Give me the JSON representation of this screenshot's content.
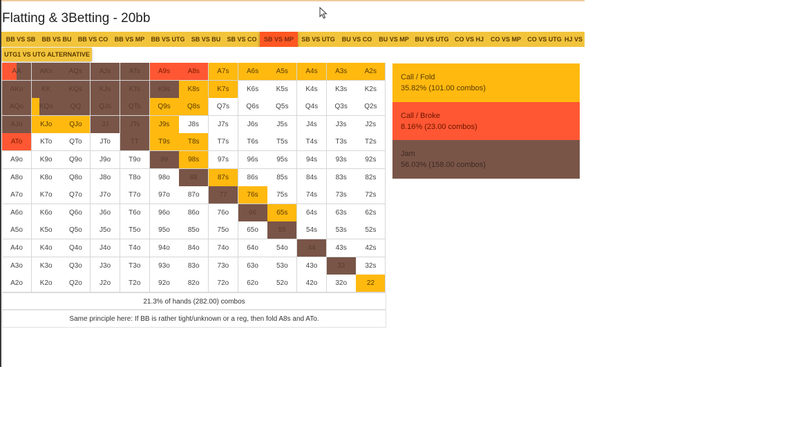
{
  "title": "Flatting & 3Betting - 20bb",
  "colors": {
    "call_fold": "#ffb90f",
    "call_broke": "#ff5733",
    "jam": "#795548",
    "fold": "#ffffff"
  },
  "tabs": [
    "BB VS SB",
    "BB VS BU",
    "BB VS CO",
    "BB VS MP",
    "BB VS UTG",
    "SB VS BU",
    "SB VS CO",
    "SB VS MP",
    "SB VS UTG",
    "BU VS CO",
    "BU VS MP",
    "BU VS UTG",
    "CO VS HJ",
    "CO VS MP",
    "CO VS UTG",
    "HJ VS MP"
  ],
  "active_tab": "SB VS MP",
  "tab2": "UTG1 VS UTG ALTERNATIVE",
  "grid": {
    "labels": [
      [
        "AA",
        "AKs",
        "AQs",
        "AJs",
        "ATs",
        "A9s",
        "A8s",
        "A7s",
        "A6s",
        "A5s",
        "A4s",
        "A3s",
        "A2s"
      ],
      [
        "AKo",
        "KK",
        "KQs",
        "KJs",
        "KTs",
        "K9s",
        "K8s",
        "K7s",
        "K6s",
        "K5s",
        "K4s",
        "K3s",
        "K2s"
      ],
      [
        "AQo",
        "KQo",
        "QQ",
        "QJs",
        "QTs",
        "Q9s",
        "Q8s",
        "Q7s",
        "Q6s",
        "Q5s",
        "Q4s",
        "Q3s",
        "Q2s"
      ],
      [
        "AJo",
        "KJo",
        "QJo",
        "JJ",
        "JTs",
        "J9s",
        "J8s",
        "J7s",
        "J6s",
        "J5s",
        "J4s",
        "J3s",
        "J2s"
      ],
      [
        "ATo",
        "KTo",
        "QTo",
        "JTo",
        "TT",
        "T9s",
        "T8s",
        "T7s",
        "T6s",
        "T5s",
        "T4s",
        "T3s",
        "T2s"
      ],
      [
        "A9o",
        "K9o",
        "Q9o",
        "J9o",
        "T9o",
        "99",
        "98s",
        "97s",
        "96s",
        "95s",
        "94s",
        "93s",
        "92s"
      ],
      [
        "A8o",
        "K8o",
        "Q8o",
        "J8o",
        "T8o",
        "98o",
        "88",
        "87s",
        "86s",
        "85s",
        "84s",
        "83s",
        "82s"
      ],
      [
        "A7o",
        "K7o",
        "Q7o",
        "J7o",
        "T7o",
        "97o",
        "87o",
        "77",
        "76s",
        "75s",
        "74s",
        "73s",
        "72s"
      ],
      [
        "A6o",
        "K6o",
        "Q6o",
        "J6o",
        "T6o",
        "96o",
        "86o",
        "76o",
        "66",
        "65s",
        "64s",
        "63s",
        "62s"
      ],
      [
        "A5o",
        "K5o",
        "Q5o",
        "J5o",
        "T5o",
        "95o",
        "85o",
        "75o",
        "65o",
        "55",
        "54s",
        "53s",
        "52s"
      ],
      [
        "A4o",
        "K4o",
        "Q4o",
        "J4o",
        "T4o",
        "94o",
        "84o",
        "74o",
        "64o",
        "54o",
        "44",
        "43s",
        "42s"
      ],
      [
        "A3o",
        "K3o",
        "Q3o",
        "J3o",
        "T3o",
        "93o",
        "83o",
        "73o",
        "63o",
        "53o",
        "43o",
        "33",
        "32s"
      ],
      [
        "A2o",
        "K2o",
        "Q2o",
        "J2o",
        "T2o",
        "92o",
        "82o",
        "72o",
        "62o",
        "52o",
        "42o",
        "32o",
        "22"
      ]
    ],
    "actions": [
      [
        "rj",
        "j",
        "j",
        "j",
        "j",
        "b",
        "b",
        "c",
        "c",
        "c",
        "c",
        "c",
        "c"
      ],
      [
        "j",
        "j",
        "j",
        "j",
        "j",
        "j",
        "c",
        "c",
        "f",
        "f",
        "f",
        "f",
        "f"
      ],
      [
        "j",
        "cj",
        "j",
        "j",
        "j",
        "c",
        "c",
        "f",
        "f",
        "f",
        "f",
        "f",
        "f"
      ],
      [
        "j",
        "c",
        "c",
        "j",
        "j",
        "c",
        "f",
        "f",
        "f",
        "f",
        "f",
        "f",
        "f"
      ],
      [
        "b",
        "f",
        "f",
        "f",
        "j",
        "c",
        "c",
        "f",
        "f",
        "f",
        "f",
        "f",
        "f"
      ],
      [
        "f",
        "f",
        "f",
        "f",
        "f",
        "j",
        "c",
        "f",
        "f",
        "f",
        "f",
        "f",
        "f"
      ],
      [
        "f",
        "f",
        "f",
        "f",
        "f",
        "f",
        "j",
        "c",
        "f",
        "f",
        "f",
        "f",
        "f"
      ],
      [
        "f",
        "f",
        "f",
        "f",
        "f",
        "f",
        "f",
        "j",
        "c",
        "f",
        "f",
        "f",
        "f"
      ],
      [
        "f",
        "f",
        "f",
        "f",
        "f",
        "f",
        "f",
        "f",
        "j",
        "c",
        "f",
        "f",
        "f"
      ],
      [
        "f",
        "f",
        "f",
        "f",
        "f",
        "f",
        "f",
        "f",
        "f",
        "j",
        "f",
        "f",
        "f"
      ],
      [
        "f",
        "f",
        "f",
        "f",
        "f",
        "f",
        "f",
        "f",
        "f",
        "f",
        "j",
        "f",
        "f"
      ],
      [
        "f",
        "f",
        "f",
        "f",
        "f",
        "f",
        "f",
        "f",
        "f",
        "f",
        "f",
        "j",
        "f"
      ],
      [
        "f",
        "f",
        "f",
        "f",
        "f",
        "f",
        "f",
        "f",
        "f",
        "f",
        "f",
        "f",
        "c"
      ]
    ]
  },
  "footer": {
    "summary": "21.3% of hands (282.00) combos",
    "note": "Same principle here: If BB is rather tight/unknown or a reg, then fold A8s and ATo."
  },
  "legend": [
    {
      "title": "Call / Fold",
      "pct": "35.82% (101.00 combos)"
    },
    {
      "title": "Call / Broke",
      "pct": "8.16% (23.00 combos)"
    },
    {
      "title": "Jam",
      "pct": "56.03% (158.00 combos)"
    }
  ]
}
